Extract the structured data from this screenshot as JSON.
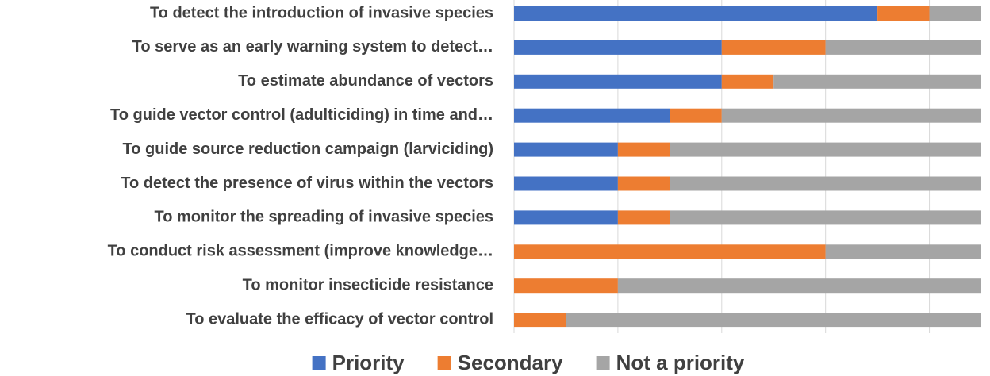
{
  "chart_data": {
    "type": "stacked_barh",
    "categories": [
      "To detect the introduction of invasive species",
      "To serve as an early warning system to detect…",
      "To estimate abundance of vectors",
      "To guide vector control (adulticiding) in time and…",
      "To guide source reduction campaign (larviciding)",
      "To detect the presence of virus within the vectors",
      "To monitor the spreading of invasive species",
      "To conduct risk assessment (improve knowledge…",
      "To monitor insecticide resistance",
      "To evaluate the efficacy of vector control"
    ],
    "series": [
      {
        "name": "Priority",
        "color": "#4472c4",
        "values": [
          7,
          4,
          4,
          3,
          2,
          2,
          2,
          0,
          0,
          0
        ]
      },
      {
        "name": "Secondary",
        "color": "#ed7d31",
        "values": [
          1,
          2,
          1,
          1,
          1,
          1,
          1,
          6,
          2,
          1
        ]
      },
      {
        "name": "Not a priority",
        "color": "#a5a5a5",
        "values": [
          1,
          3,
          4,
          5,
          6,
          6,
          6,
          3,
          7,
          8
        ]
      }
    ],
    "xlim": [
      0,
      9
    ],
    "xticks": [
      0,
      2,
      4,
      6,
      8
    ],
    "grid": true,
    "legend": "bottom"
  }
}
